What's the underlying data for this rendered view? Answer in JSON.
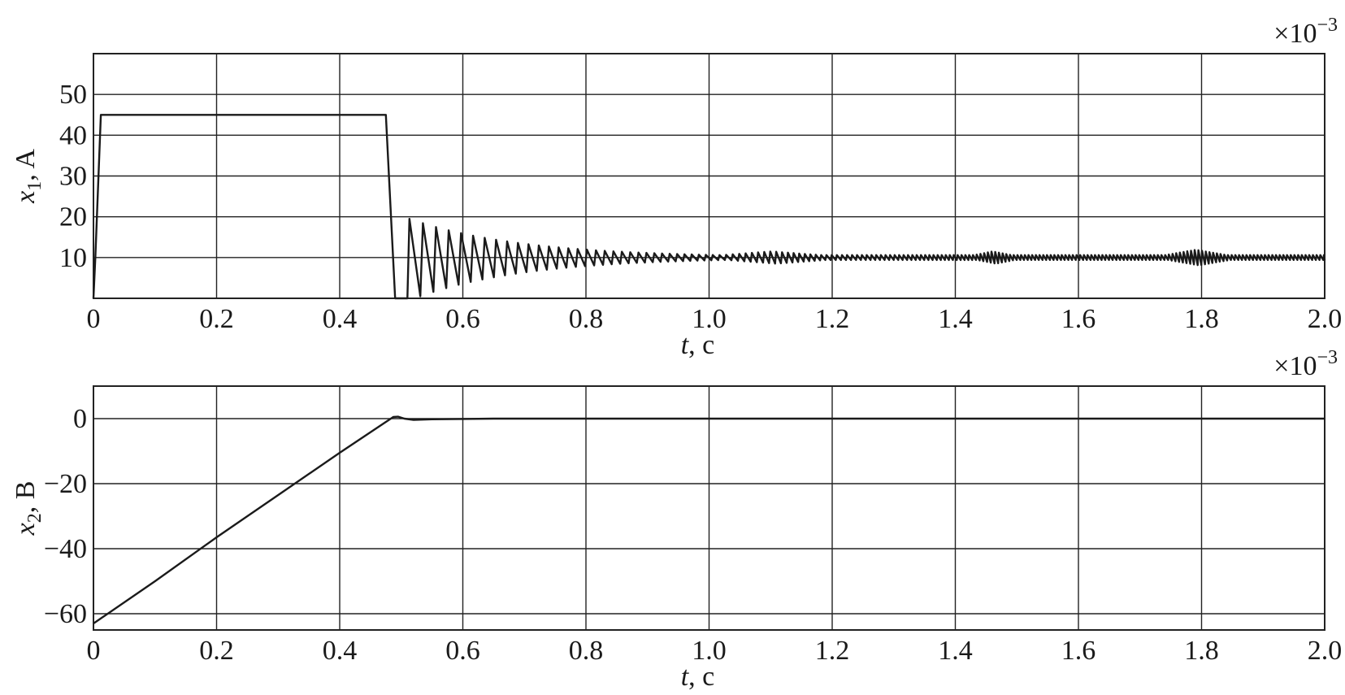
{
  "chart_data": [
    {
      "type": "line",
      "ylabel_var": "x",
      "ylabel_sub": "1",
      "ylabel_unit": ", A",
      "xlabel_var": "t",
      "xlabel_unit": ", c",
      "x_multiplier_label": "×10",
      "x_multiplier_exp": "−3",
      "xlim": [
        0,
        2.0
      ],
      "ylim": [
        0,
        60
      ],
      "grid": true,
      "x_ticks": [
        0,
        0.2,
        0.4,
        0.6,
        0.8,
        1.0,
        1.2,
        1.4,
        1.6,
        1.8,
        2.0
      ],
      "x_tick_labels": [
        "0",
        "0.2",
        "0.4",
        "0.6",
        "0.8",
        "1.0",
        "1.2",
        "1.4",
        "1.6",
        "1.8",
        "2.0"
      ],
      "y_ticks": [
        10,
        20,
        30,
        40,
        50
      ],
      "y_tick_labels": [
        "10",
        "20",
        "30",
        "40",
        "50"
      ],
      "y_grid": [
        10,
        20,
        30,
        40,
        50
      ],
      "series": [
        {
          "x": [
            0,
            0.003,
            0.012,
            0.475,
            0.49,
            0.505,
            0.51
          ],
          "y": [
            0,
            10,
            45,
            45,
            0,
            0,
            0
          ],
          "oscillation": {
            "t_start": 0.51,
            "t_end": 2.0,
            "center": 10,
            "peak_start": 19.5,
            "trough_start": 0.5,
            "period_start": 0.022,
            "period_end": 0.006,
            "settle_rate": 5.5,
            "ripple_min": 0.6,
            "bursts": [
              {
                "t": 1.1,
                "width": 0.08,
                "amp": 0.9
              },
              {
                "t": 1.46,
                "width": 0.03,
                "amp": 0.9
              },
              {
                "t": 1.79,
                "width": 0.05,
                "amp": 1.3
              }
            ]
          }
        }
      ]
    },
    {
      "type": "line",
      "ylabel_var": "x",
      "ylabel_sub": "2",
      "ylabel_unit": ", B",
      "xlabel_var": "t",
      "xlabel_unit": ", c",
      "x_multiplier_label": "×10",
      "x_multiplier_exp": "−3",
      "xlim": [
        0,
        2.0
      ],
      "ylim": [
        -65,
        10
      ],
      "grid": true,
      "x_ticks": [
        0,
        0.2,
        0.4,
        0.6,
        0.8,
        1.0,
        1.2,
        1.4,
        1.6,
        1.8,
        2.0
      ],
      "x_tick_labels": [
        "0",
        "0.2",
        "0.4",
        "0.6",
        "0.8",
        "1.0",
        "1.2",
        "1.4",
        "1.6",
        "1.8",
        "2.0"
      ],
      "y_ticks": [
        0,
        -20,
        -40,
        -60
      ],
      "y_tick_labels": [
        "0",
        "−20",
        "−40",
        "−60"
      ],
      "y_grid": [
        0,
        -20,
        -40,
        -60
      ],
      "series": [
        {
          "x": [
            0,
            0.1,
            0.2,
            0.3,
            0.4,
            0.487,
            0.495,
            0.505,
            0.52,
            0.55,
            0.6,
            0.65,
            2.0
          ],
          "y": [
            -63,
            -50,
            -36.5,
            -23.5,
            -10.5,
            0.5,
            0.6,
            0,
            -0.4,
            -0.2,
            -0.1,
            0,
            0
          ]
        }
      ]
    }
  ]
}
